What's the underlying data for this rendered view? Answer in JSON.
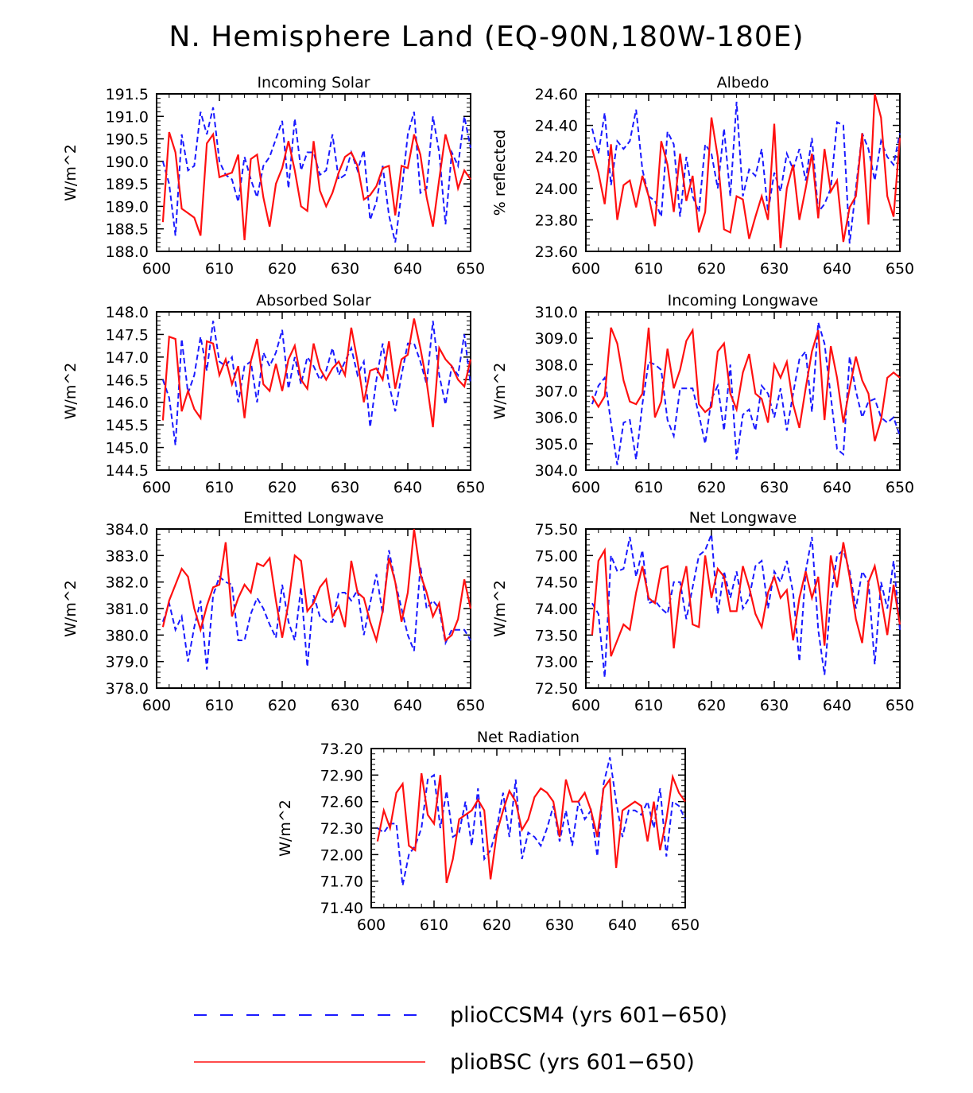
{
  "figure": {
    "title": "N. Hemisphere Land (EQ-90N,180W-180E)",
    "legend": [
      {
        "label": "plioCCSM4 (yrs 601−650)",
        "color": "#1a1aff",
        "style": "dashed"
      },
      {
        "label": "plioBSC (yrs 601−650)",
        "color": "#ff1010",
        "style": "solid"
      }
    ]
  },
  "chart_data": [
    {
      "type": "line",
      "title": "Incoming Solar",
      "ylabel": "W/m^2",
      "xlabel": "",
      "xlim": [
        600,
        650
      ],
      "ylim": [
        188.0,
        191.5
      ],
      "xticks": [
        "600",
        "610",
        "620",
        "630",
        "640",
        "650"
      ],
      "yticks": [
        "188.0",
        "188.5",
        "189.0",
        "189.5",
        "190.0",
        "190.5",
        "191.0",
        "191.5"
      ],
      "x_start": 601,
      "series": [
        {
          "name": "plioCCSM4",
          "values": [
            190.0,
            189.5,
            188.35,
            190.6,
            189.8,
            189.9,
            191.1,
            190.6,
            191.2,
            190.0,
            189.7,
            189.6,
            189.1,
            190.1,
            189.6,
            189.2,
            189.9,
            190.1,
            190.5,
            190.9,
            189.4,
            190.95,
            189.8,
            190.2,
            190.2,
            189.7,
            189.8,
            190.6,
            189.6,
            189.7,
            190.2,
            189.8,
            190.25,
            188.7,
            189.1,
            189.9,
            188.8,
            188.2,
            189.3,
            190.6,
            191.1,
            189.3,
            189.4,
            191.0,
            190.2,
            188.6,
            190.2,
            189.9,
            191.0,
            190.3
          ]
        },
        {
          "name": "plioBSC",
          "values": [
            188.65,
            190.65,
            190.2,
            188.95,
            188.85,
            188.75,
            188.35,
            190.4,
            190.6,
            189.65,
            189.7,
            189.75,
            190.15,
            188.25,
            190.05,
            190.15,
            189.2,
            188.55,
            189.5,
            189.85,
            190.45,
            189.8,
            189.0,
            188.9,
            190.45,
            189.35,
            189.0,
            189.3,
            189.75,
            190.1,
            190.2,
            189.9,
            189.15,
            189.25,
            189.45,
            189.85,
            189.9,
            188.8,
            189.9,
            189.85,
            190.6,
            190.15,
            189.2,
            188.55,
            189.6,
            190.6,
            190.1,
            189.4,
            189.8,
            189.6
          ]
        }
      ]
    },
    {
      "type": "line",
      "title": "Albedo",
      "ylabel": "% reflected",
      "xlabel": "",
      "xlim": [
        600,
        650
      ],
      "ylim": [
        23.6,
        24.6
      ],
      "xticks": [
        "600",
        "610",
        "620",
        "630",
        "640",
        "650"
      ],
      "yticks": [
        "23.60",
        "23.80",
        "24.00",
        "24.20",
        "24.40",
        "24.60"
      ],
      "x_start": 601,
      "series": [
        {
          "name": "plioCCSM4",
          "values": [
            24.38,
            24.22,
            24.48,
            24.02,
            24.3,
            24.25,
            24.3,
            24.5,
            24.12,
            23.95,
            23.92,
            23.82,
            24.36,
            24.28,
            23.82,
            24.2,
            23.95,
            23.85,
            24.28,
            24.22,
            24.0,
            24.38,
            23.95,
            24.55,
            23.95,
            24.12,
            24.08,
            24.25,
            23.85,
            24.1,
            23.98,
            24.22,
            24.12,
            24.25,
            24.05,
            24.32,
            23.85,
            23.9,
            24.0,
            24.42,
            24.4,
            23.65,
            24.0,
            24.35,
            24.25,
            24.05,
            24.3,
            24.2,
            24.15,
            24.35
          ]
        },
        {
          "name": "plioBSC",
          "values": [
            24.25,
            24.1,
            23.9,
            24.28,
            23.8,
            24.02,
            24.05,
            23.88,
            24.08,
            23.95,
            23.76,
            24.3,
            24.15,
            23.85,
            24.22,
            23.92,
            24.08,
            23.72,
            23.85,
            24.45,
            24.2,
            23.74,
            23.72,
            23.95,
            23.93,
            23.68,
            23.82,
            23.95,
            23.8,
            24.41,
            23.62,
            24.0,
            24.15,
            23.8,
            24.0,
            24.22,
            23.81,
            24.25,
            23.98,
            24.05,
            23.66,
            23.88,
            23.95,
            24.35,
            23.77,
            24.6,
            24.45,
            23.95,
            23.82,
            24.32
          ]
        }
      ]
    },
    {
      "type": "line",
      "title": "Absorbed Solar",
      "ylabel": "W/m^2",
      "xlabel": "",
      "xlim": [
        600,
        650
      ],
      "ylim": [
        144.5,
        148.0
      ],
      "xticks": [
        "600",
        "610",
        "620",
        "630",
        "640",
        "650"
      ],
      "yticks": [
        "144.5",
        "145.0",
        "145.5",
        "146.0",
        "146.5",
        "147.0",
        "147.5",
        "148.0"
      ],
      "x_start": 601,
      "series": [
        {
          "name": "plioCCSM4",
          "values": [
            146.5,
            146.1,
            145.05,
            147.4,
            146.2,
            146.6,
            147.45,
            146.7,
            147.8,
            146.9,
            146.8,
            147.0,
            146.0,
            146.8,
            146.9,
            146.0,
            147.1,
            146.8,
            147.1,
            147.6,
            146.3,
            147.0,
            146.4,
            147.0,
            146.8,
            146.5,
            146.7,
            147.2,
            146.6,
            146.9,
            147.2,
            146.6,
            146.9,
            145.45,
            146.5,
            147.3,
            146.4,
            145.8,
            146.6,
            147.3,
            147.3,
            146.9,
            146.4,
            147.8,
            146.6,
            145.95,
            146.8,
            146.6,
            147.5,
            146.4
          ]
        },
        {
          "name": "plioBSC",
          "values": [
            145.6,
            147.45,
            147.4,
            145.8,
            146.25,
            145.85,
            145.65,
            147.35,
            147.3,
            146.6,
            146.95,
            146.4,
            146.8,
            145.65,
            146.9,
            147.4,
            146.4,
            146.25,
            146.85,
            146.25,
            146.95,
            147.25,
            146.5,
            146.3,
            147.3,
            146.75,
            146.5,
            146.75,
            146.9,
            146.6,
            147.65,
            146.9,
            146.0,
            146.7,
            146.75,
            146.5,
            147.35,
            146.3,
            146.95,
            147.05,
            147.85,
            147.2,
            146.45,
            145.45,
            147.2,
            146.95,
            146.8,
            146.5,
            146.35,
            146.95
          ]
        }
      ]
    },
    {
      "type": "line",
      "title": "Incoming Longwave",
      "ylabel": "W/m^2",
      "xlabel": "",
      "xlim": [
        600,
        650
      ],
      "ylim": [
        304.0,
        310.0
      ],
      "xticks": [
        "600",
        "610",
        "620",
        "630",
        "640",
        "650"
      ],
      "yticks": [
        "304.0",
        "305.0",
        "306.0",
        "307.0",
        "308.0",
        "309.0",
        "310.0"
      ],
      "x_start": 601,
      "series": [
        {
          "name": "plioCCSM4",
          "values": [
            306.5,
            307.2,
            307.5,
            305.8,
            304.2,
            305.8,
            305.9,
            304.4,
            306.5,
            308.1,
            308.0,
            307.8,
            305.9,
            305.3,
            307.1,
            307.1,
            307.1,
            306.1,
            305.0,
            306.7,
            307.2,
            305.5,
            308.0,
            304.4,
            306.1,
            306.3,
            305.5,
            307.2,
            306.9,
            306.0,
            307.1,
            305.5,
            306.9,
            308.2,
            308.5,
            306.2,
            309.6,
            308.8,
            306.8,
            304.8,
            304.6,
            308.3,
            307.0,
            306.0,
            306.6,
            306.7,
            306.0,
            305.8,
            306.0,
            305.3
          ]
        },
        {
          "name": "plioBSC",
          "values": [
            306.8,
            306.4,
            306.8,
            309.4,
            308.8,
            307.4,
            306.6,
            306.5,
            306.9,
            309.4,
            306.0,
            306.6,
            308.6,
            307.1,
            307.8,
            308.9,
            309.3,
            306.5,
            306.2,
            306.4,
            308.5,
            308.8,
            306.9,
            306.3,
            307.7,
            308.4,
            306.9,
            306.7,
            305.8,
            308.0,
            307.5,
            308.1,
            306.5,
            305.6,
            307.1,
            308.5,
            309.3,
            305.9,
            308.7,
            307.5,
            305.8,
            307.1,
            308.3,
            307.4,
            306.9,
            305.1,
            305.9,
            307.5,
            307.7,
            307.5
          ]
        }
      ]
    },
    {
      "type": "line",
      "title": "Emitted Longwave",
      "ylabel": "W/m^2",
      "xlabel": "",
      "xlim": [
        600,
        650
      ],
      "ylim": [
        378.0,
        384.0
      ],
      "xticks": [
        "600",
        "610",
        "620",
        "630",
        "640",
        "650"
      ],
      "yticks": [
        "378.0",
        "379.0",
        "380.0",
        "381.0",
        "382.0",
        "383.0",
        "384.0"
      ],
      "x_start": 601,
      "series": [
        {
          "name": "plioCCSM4",
          "values": [
            380.5,
            381.2,
            380.2,
            380.7,
            379.0,
            380.3,
            381.3,
            378.7,
            381.5,
            382.2,
            382.0,
            381.9,
            379.8,
            379.8,
            380.8,
            381.4,
            381.0,
            380.4,
            379.9,
            381.9,
            380.5,
            379.8,
            381.8,
            378.8,
            381.5,
            380.7,
            380.5,
            380.5,
            381.6,
            381.6,
            381.3,
            381.7,
            380.0,
            381.2,
            382.3,
            380.8,
            383.2,
            382.0,
            381.0,
            380.0,
            379.4,
            382.6,
            381.0,
            381.3,
            381.0,
            379.7,
            380.2,
            380.2,
            380.2,
            379.8
          ]
        },
        {
          "name": "plioBSC",
          "values": [
            380.3,
            381.3,
            381.9,
            382.5,
            382.2,
            381.0,
            380.2,
            381.1,
            381.8,
            381.9,
            383.5,
            380.7,
            381.4,
            381.9,
            381.6,
            382.7,
            382.6,
            382.9,
            381.3,
            379.9,
            381.2,
            383.0,
            382.8,
            380.9,
            381.2,
            381.8,
            382.1,
            380.7,
            381.1,
            380.3,
            382.8,
            381.6,
            381.4,
            380.5,
            379.8,
            380.9,
            382.9,
            382.0,
            380.5,
            381.6,
            384.0,
            382.3,
            381.6,
            380.7,
            381.2,
            379.8,
            380.0,
            380.6,
            382.1,
            381.0
          ]
        }
      ]
    },
    {
      "type": "line",
      "title": "Net Longwave",
      "ylabel": "W/m^2",
      "xlabel": "",
      "xlim": [
        600,
        650
      ],
      "ylim": [
        72.5,
        75.5
      ],
      "xticks": [
        "600",
        "610",
        "620",
        "630",
        "640",
        "650"
      ],
      "yticks": [
        "72.50",
        "73.00",
        "73.50",
        "74.00",
        "74.50",
        "75.00",
        "75.50"
      ],
      "x_start": 601,
      "series": [
        {
          "name": "plioCCSM4",
          "values": [
            74.1,
            73.9,
            72.7,
            75.0,
            74.7,
            74.75,
            75.35,
            74.6,
            75.1,
            74.1,
            74.15,
            74.0,
            73.9,
            74.5,
            74.5,
            73.8,
            74.4,
            75.0,
            75.1,
            75.4,
            73.9,
            74.7,
            74.2,
            74.7,
            74.0,
            74.2,
            74.8,
            74.9,
            74.0,
            74.7,
            74.5,
            74.9,
            74.3,
            73.0,
            74.7,
            75.35,
            73.6,
            72.75,
            74.2,
            75.0,
            75.1,
            74.7,
            74.0,
            74.7,
            74.5,
            72.95,
            74.5,
            74.0,
            74.9,
            73.6
          ]
        },
        {
          "name": "plioBSC",
          "values": [
            73.5,
            74.9,
            75.1,
            73.1,
            73.4,
            73.7,
            73.6,
            74.3,
            74.8,
            74.2,
            74.1,
            74.75,
            74.8,
            73.25,
            74.3,
            74.8,
            73.7,
            73.65,
            75.0,
            74.2,
            74.75,
            74.6,
            73.95,
            73.95,
            74.8,
            74.4,
            73.9,
            73.65,
            74.3,
            74.6,
            74.2,
            74.35,
            73.4,
            74.2,
            74.7,
            74.2,
            74.6,
            73.3,
            75.0,
            74.4,
            75.25,
            74.6,
            73.8,
            73.35,
            74.5,
            74.8,
            74.2,
            73.5,
            74.45,
            73.7
          ]
        }
      ]
    },
    {
      "type": "line",
      "title": "Net Radiation",
      "ylabel": "W/m^2",
      "xlabel": "",
      "xlim": [
        600,
        650
      ],
      "ylim": [
        71.4,
        73.2
      ],
      "xticks": [
        "600",
        "610",
        "620",
        "630",
        "640",
        "650"
      ],
      "yticks": [
        "71.40",
        "71.70",
        "72.00",
        "72.30",
        "72.60",
        "72.90",
        "73.20"
      ],
      "x_start": 601,
      "series": [
        {
          "name": "plioCCSM4",
          "values": [
            72.3,
            72.25,
            72.35,
            72.35,
            71.65,
            72.0,
            72.1,
            72.3,
            72.85,
            72.9,
            72.3,
            72.72,
            72.2,
            72.25,
            72.6,
            72.1,
            72.75,
            71.95,
            72.05,
            72.3,
            72.7,
            72.2,
            72.85,
            71.95,
            72.25,
            72.2,
            72.1,
            72.3,
            72.55,
            72.15,
            72.5,
            72.1,
            72.6,
            72.4,
            72.5,
            71.98,
            72.8,
            73.1,
            72.6,
            72.2,
            72.5,
            72.5,
            72.45,
            72.6,
            72.3,
            72.75,
            71.98,
            72.6,
            72.55,
            72.4
          ]
        },
        {
          "name": "plioBSC",
          "values": [
            72.15,
            72.5,
            72.3,
            72.7,
            72.8,
            72.1,
            72.05,
            72.92,
            72.45,
            72.35,
            72.9,
            71.68,
            71.95,
            72.4,
            72.45,
            72.5,
            72.62,
            72.5,
            71.72,
            72.25,
            72.5,
            72.72,
            72.6,
            72.28,
            72.4,
            72.65,
            72.75,
            72.7,
            72.6,
            72.2,
            72.85,
            72.6,
            72.6,
            72.7,
            72.5,
            72.2,
            72.75,
            72.85,
            71.85,
            72.5,
            72.55,
            72.6,
            72.55,
            72.15,
            72.6,
            72.05,
            72.4,
            72.88,
            72.7,
            72.6
          ]
        }
      ]
    }
  ]
}
